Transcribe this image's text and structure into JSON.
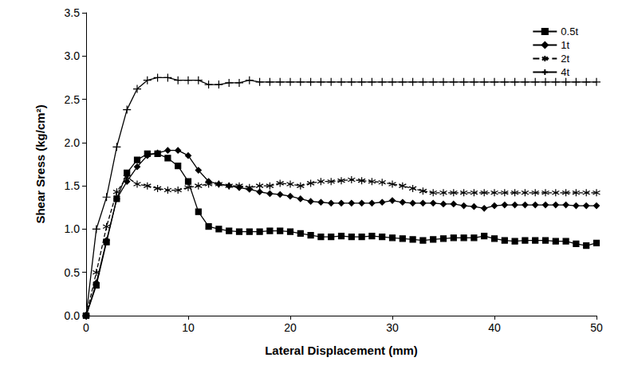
{
  "chart_data": {
    "type": "line",
    "x_label": "Lateral Displacement (mm)",
    "y_label": "Shear Sress (kg/cm²)",
    "x": [
      0,
      1,
      2,
      3,
      4,
      5,
      6,
      7,
      8,
      9,
      10,
      11,
      12,
      13,
      14,
      15,
      16,
      17,
      18,
      19,
      20,
      21,
      22,
      23,
      24,
      25,
      26,
      27,
      28,
      29,
      30,
      31,
      32,
      33,
      34,
      35,
      36,
      37,
      38,
      39,
      40,
      41,
      42,
      43,
      44,
      45,
      46,
      47,
      48,
      49,
      50
    ],
    "xlim": [
      0,
      50
    ],
    "xticks": [
      0,
      10,
      20,
      30,
      40,
      50
    ],
    "ylim": [
      0,
      3.5
    ],
    "yticks": [
      {
        "value": 0,
        "label": "0.0"
      },
      0.5,
      {
        "value": 1,
        "label": "1.0"
      },
      1.5,
      {
        "value": 2,
        "label": "2.0"
      },
      2.5,
      {
        "value": 3,
        "label": "3.0"
      },
      3.5
    ],
    "grid": false,
    "legend": "top-right",
    "series": [
      {
        "name": "0.5t",
        "color": "#000000",
        "marker": "square",
        "line_style": "solid",
        "values": [
          0,
          0.35,
          0.85,
          1.35,
          1.65,
          1.8,
          1.87,
          1.87,
          1.82,
          1.73,
          1.55,
          1.2,
          1.03,
          1.0,
          0.98,
          0.97,
          0.97,
          0.97,
          0.98,
          0.98,
          0.97,
          0.95,
          0.93,
          0.91,
          0.91,
          0.92,
          0.91,
          0.91,
          0.92,
          0.91,
          0.9,
          0.89,
          0.88,
          0.87,
          0.88,
          0.89,
          0.9,
          0.9,
          0.9,
          0.92,
          0.89,
          0.87,
          0.86,
          0.87,
          0.87,
          0.87,
          0.86,
          0.86,
          0.83,
          0.81,
          0.84
        ]
      },
      {
        "name": "1t",
        "color": "#000000",
        "marker": "diamond",
        "line_style": "solid",
        "values": [
          0,
          0.38,
          0.87,
          1.35,
          1.55,
          1.72,
          1.85,
          1.88,
          1.91,
          1.91,
          1.85,
          1.68,
          1.55,
          1.52,
          1.5,
          1.48,
          1.46,
          1.43,
          1.41,
          1.4,
          1.38,
          1.35,
          1.32,
          1.31,
          1.3,
          1.3,
          1.3,
          1.3,
          1.3,
          1.31,
          1.33,
          1.31,
          1.3,
          1.3,
          1.3,
          1.29,
          1.29,
          1.27,
          1.26,
          1.24,
          1.27,
          1.28,
          1.28,
          1.28,
          1.28,
          1.28,
          1.28,
          1.28,
          1.27,
          1.27,
          1.27
        ]
      },
      {
        "name": "2t",
        "color": "#000000",
        "marker": "asterisk",
        "line_style": "dashed",
        "values": [
          0,
          0.5,
          1.03,
          1.43,
          1.6,
          1.52,
          1.5,
          1.47,
          1.45,
          1.45,
          1.48,
          1.5,
          1.52,
          1.52,
          1.5,
          1.5,
          1.48,
          1.5,
          1.5,
          1.53,
          1.52,
          1.5,
          1.53,
          1.55,
          1.55,
          1.56,
          1.57,
          1.56,
          1.55,
          1.54,
          1.52,
          1.5,
          1.47,
          1.44,
          1.42,
          1.42,
          1.42,
          1.42,
          1.42,
          1.42,
          1.42,
          1.42,
          1.42,
          1.42,
          1.42,
          1.42,
          1.42,
          1.42,
          1.42,
          1.42,
          1.42
        ]
      },
      {
        "name": "4t",
        "color": "#000000",
        "marker": "plus",
        "line_style": "solid",
        "values": [
          0,
          1.0,
          1.37,
          1.95,
          2.38,
          2.62,
          2.72,
          2.75,
          2.75,
          2.72,
          2.72,
          2.72,
          2.67,
          2.67,
          2.69,
          2.69,
          2.72,
          2.7,
          2.7,
          2.7,
          2.7,
          2.7,
          2.7,
          2.7,
          2.7,
          2.7,
          2.7,
          2.7,
          2.7,
          2.7,
          2.7,
          2.7,
          2.7,
          2.7,
          2.7,
          2.7,
          2.7,
          2.7,
          2.7,
          2.7,
          2.7,
          2.7,
          2.7,
          2.7,
          2.7,
          2.7,
          2.7,
          2.7,
          2.7,
          2.7,
          2.7
        ]
      }
    ]
  }
}
